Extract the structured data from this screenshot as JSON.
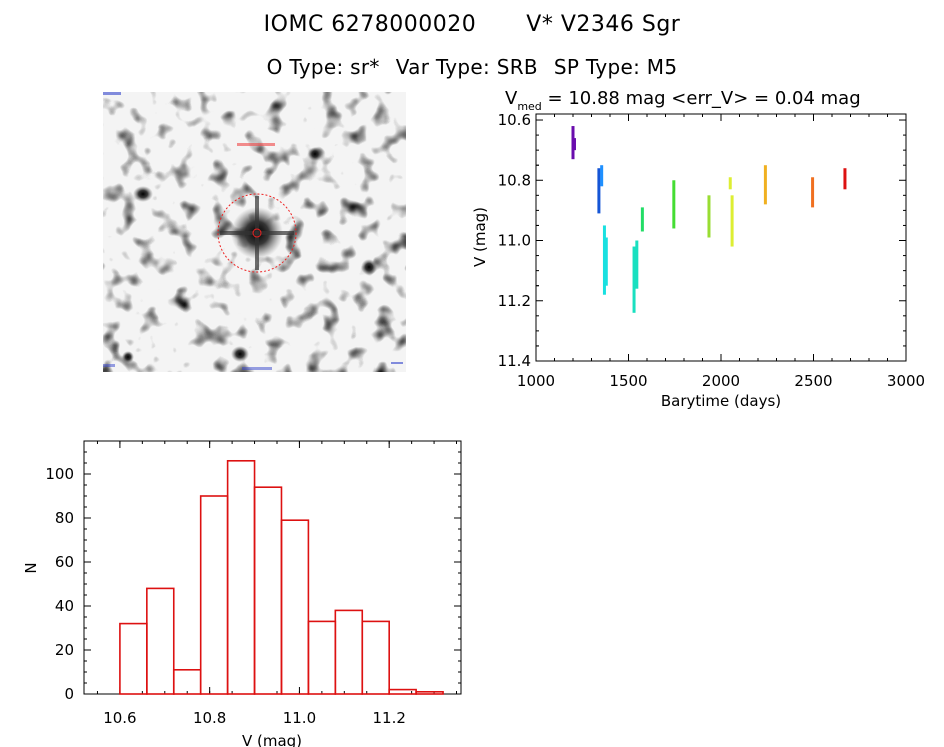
{
  "header": {
    "object_id": "IOMC 6278000020",
    "name": "V* V2346 Sgr",
    "o_type": "O Type: sr*",
    "var_type": "Var Type: SRB",
    "sp_type": "SP Type: M5"
  },
  "colors": {
    "histogram": "#dd1111",
    "circle": "#ee2222"
  },
  "chart_data": [
    {
      "type": "scatter",
      "title_prefix": "V",
      "title_sub": "med",
      "title_rest": " = 10.88 mag <err_V> = 0.04 mag",
      "xlabel": "Barytime (days)",
      "ylabel": "V (mag)",
      "xlim": [
        1000,
        3000
      ],
      "ylim": [
        11.4,
        10.58
      ],
      "y_inverted": true,
      "xticks": [
        1000,
        1500,
        2000,
        2500,
        3000
      ],
      "xtick_labels": [
        "1000",
        "1500",
        "2000",
        "2500",
        "3000"
      ],
      "yticks": [
        10.6,
        10.8,
        11.0,
        11.2,
        11.4
      ],
      "ytick_labels": [
        "10.6",
        "10.8",
        "11.0",
        "11.2",
        "11.4"
      ],
      "groups": [
        {
          "x": 1200,
          "ymin": 10.62,
          "ymax": 10.73,
          "color": "#6a0dad"
        },
        {
          "x": 1208,
          "ymin": 10.66,
          "ymax": 10.7,
          "color": "#6a0dad"
        },
        {
          "x": 1340,
          "ymin": 10.76,
          "ymax": 10.91,
          "color": "#1555d6"
        },
        {
          "x": 1355,
          "ymin": 10.75,
          "ymax": 10.82,
          "color": "#1e90ff"
        },
        {
          "x": 1370,
          "ymin": 10.95,
          "ymax": 11.18,
          "color": "#19e0e0"
        },
        {
          "x": 1380,
          "ymin": 10.99,
          "ymax": 11.15,
          "color": "#19e0e0"
        },
        {
          "x": 1530,
          "ymin": 11.02,
          "ymax": 11.24,
          "color": "#19e0c0"
        },
        {
          "x": 1545,
          "ymin": 11.0,
          "ymax": 11.16,
          "color": "#19e0c0"
        },
        {
          "x": 1575,
          "ymin": 10.89,
          "ymax": 10.97,
          "color": "#22dd66"
        },
        {
          "x": 1745,
          "ymin": 10.8,
          "ymax": 10.96,
          "color": "#44dd33"
        },
        {
          "x": 1935,
          "ymin": 10.85,
          "ymax": 10.99,
          "color": "#99dd33"
        },
        {
          "x": 2050,
          "ymin": 10.79,
          "ymax": 10.83,
          "color": "#ddee33"
        },
        {
          "x": 2060,
          "ymin": 10.85,
          "ymax": 11.02,
          "color": "#ddee33"
        },
        {
          "x": 2240,
          "ymin": 10.75,
          "ymax": 10.88,
          "color": "#f0b020"
        },
        {
          "x": 2495,
          "ymin": 10.79,
          "ymax": 10.89,
          "color": "#f07020"
        },
        {
          "x": 2670,
          "ymin": 10.76,
          "ymax": 10.83,
          "color": "#dd1111"
        }
      ]
    },
    {
      "type": "bar",
      "xlabel": "V (mag)",
      "ylabel": "N",
      "xlim": [
        10.52,
        11.36
      ],
      "ylim": [
        0,
        115
      ],
      "xticks": [
        10.6,
        10.8,
        11.0,
        11.2
      ],
      "xtick_labels": [
        "10.6",
        "10.8",
        "11.0",
        "11.2"
      ],
      "yticks": [
        0,
        20,
        40,
        60,
        80,
        100
      ],
      "ytick_labels": [
        "0",
        "20",
        "40",
        "60",
        "80",
        "100"
      ],
      "bin_width": 0.06,
      "bin_starts": [
        10.6,
        10.66,
        10.72,
        10.78,
        10.84,
        10.9,
        10.96,
        11.02,
        11.08,
        11.14,
        11.2,
        11.26
      ],
      "values": [
        32,
        48,
        11,
        90,
        106,
        94,
        79,
        33,
        38,
        33,
        2,
        1
      ]
    }
  ]
}
